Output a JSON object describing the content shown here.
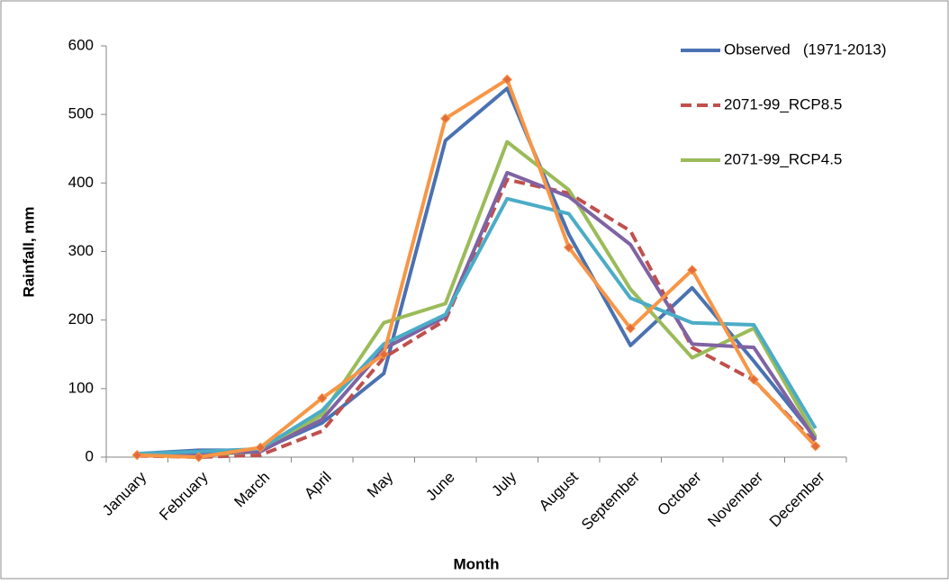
{
  "chart_data": {
    "type": "line",
    "x_label": "Month",
    "y_label": "Rainfall, mm",
    "categories": [
      "January",
      "February",
      "March",
      "April",
      "May",
      "June",
      "July",
      "August",
      "September",
      "October",
      "November",
      "December"
    ],
    "series": [
      {
        "name": "Observed   (1971-2013)",
        "color": "#4a72b2",
        "values": [
          5,
          10,
          10,
          50,
          122,
          462,
          538,
          325,
          163,
          247,
          140,
          28
        ]
      },
      {
        "name": "2071-99_RCP8.5",
        "color": "#c0504d",
        "dashed": true,
        "values": [
          2,
          0,
          3,
          38,
          145,
          200,
          405,
          385,
          330,
          160,
          112,
          20
        ]
      },
      {
        "name": "2071-99_RCP4.5",
        "color": "#9bbb59",
        "values": [
          3,
          3,
          8,
          62,
          196,
          224,
          460,
          390,
          245,
          145,
          188,
          30
        ]
      },
      {
        "color": "#7f63a2",
        "values": [
          3,
          5,
          8,
          55,
          158,
          205,
          415,
          380,
          310,
          165,
          160,
          25
        ]
      },
      {
        "color": "#4bacc6",
        "values": [
          5,
          8,
          12,
          68,
          165,
          208,
          377,
          355,
          232,
          196,
          193,
          42
        ]
      },
      {
        "color": "#f79646",
        "marker": "diamond",
        "marker_color": "#e46c3c",
        "values": [
          3,
          0,
          14,
          86,
          150,
          494,
          551,
          306,
          188,
          273,
          113,
          16
        ]
      }
    ],
    "ylim": [
      0,
      600
    ],
    "yticks": [
      0,
      100,
      200,
      300,
      400,
      500,
      600
    ]
  }
}
